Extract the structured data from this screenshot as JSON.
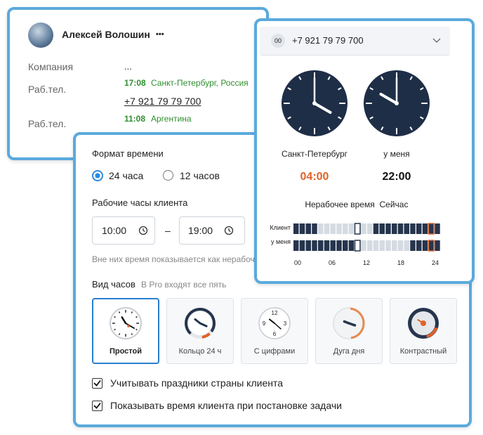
{
  "contact": {
    "name": "Алексей Волошин",
    "menu": "•••",
    "company": {
      "label": "Компания",
      "value": "..."
    },
    "phones": [
      {
        "label": "Раб.тел.",
        "time": "17:08",
        "location": "Санкт-Петербург, Россия",
        "number": "+7 921 79 79 700"
      },
      {
        "label": "Раб.тел.",
        "time": "11:08",
        "location": "Аргентина"
      }
    ]
  },
  "settings": {
    "time_format": {
      "label": "Формат времени",
      "options": [
        "24 часа",
        "12 часов"
      ]
    },
    "work_hours": {
      "label": "Рабочие часы клиента",
      "from": "10:00",
      "separator": "–",
      "to": "19:00",
      "hint": "Вне них время показывается как нерабочее"
    },
    "clock_style": {
      "label": "Вид часов",
      "note": "В Pro входят все пять",
      "options": [
        "Простой",
        "Кольцо 24 ч",
        "С цифрами",
        "Дуга дня",
        "Контрастный"
      ],
      "numerals": [
        "12",
        "3",
        "6",
        "9"
      ]
    },
    "checkboxes": [
      "Учитывать праздники страны клиента",
      "Показывать время клиента при постановке задачи"
    ]
  },
  "clock_popup": {
    "badge": "00",
    "phone": "+7 921 79 79 700",
    "clocks": [
      {
        "label": "Санкт-Петербург",
        "time": "04:00"
      },
      {
        "label": "у меня",
        "time": "22:00"
      }
    ],
    "legend": [
      "Нерабочее время",
      "Сейчас"
    ],
    "rows": [
      "Клиент",
      "у меня"
    ],
    "axis": [
      "00",
      "06",
      "12",
      "18",
      "24"
    ]
  }
}
